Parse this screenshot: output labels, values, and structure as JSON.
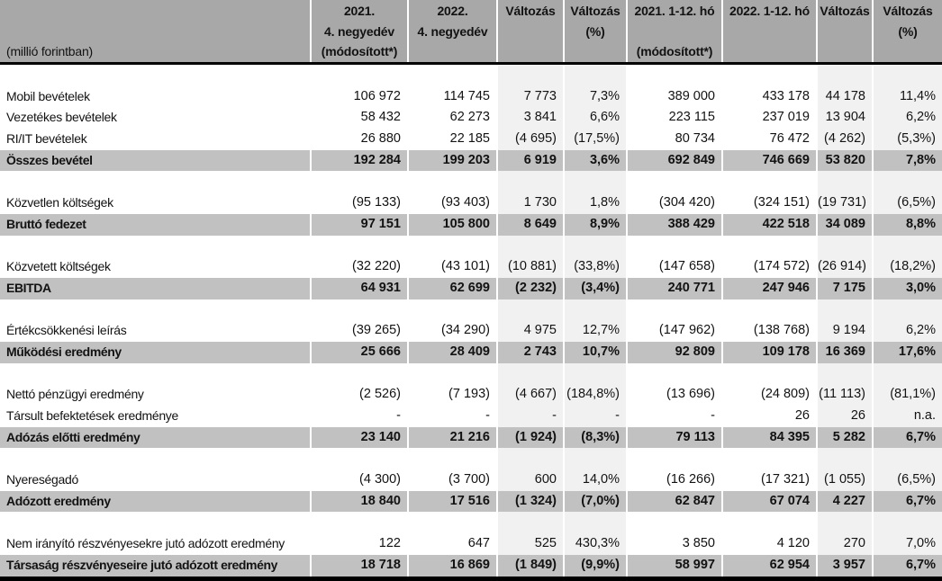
{
  "colors": {
    "header_bg": "#a8a8a8",
    "total_row_bg": "#c1c1c1",
    "change_column_bg": "#f1f1f1",
    "rule": "#000000",
    "text": "#121212"
  },
  "columns": [
    {
      "key": "label",
      "lines": [
        "",
        "",
        "(millió forintban)"
      ]
    },
    {
      "key": "q4-2021",
      "lines": [
        "2021.",
        "4. negyedév",
        "(módosított*)"
      ]
    },
    {
      "key": "q4-2022",
      "lines": [
        "2022.",
        "4. negyedév",
        ""
      ]
    },
    {
      "key": "change-q4",
      "lines": [
        "Változás",
        "",
        ""
      ]
    },
    {
      "key": "change-q4-pct",
      "lines": [
        "Változás",
        "(%)",
        ""
      ]
    },
    {
      "key": "fy-2021",
      "lines": [
        "2021. 1-12. hó",
        "",
        "(módosított*)"
      ]
    },
    {
      "key": "fy-2022",
      "lines": [
        "2022. 1-12. hó",
        "",
        ""
      ]
    },
    {
      "key": "change-fy",
      "lines": [
        "Változás",
        "",
        ""
      ]
    },
    {
      "key": "change-fy-pct",
      "lines": [
        "Változás",
        "(%)",
        ""
      ]
    }
  ],
  "rows": [
    {
      "type": "spacer"
    },
    {
      "type": "data",
      "label": "Mobil bevételek",
      "values": [
        "106 972",
        "114 745",
        "7 773",
        "7,3%",
        "389 000",
        "433 178",
        "44 178",
        "11,4%"
      ]
    },
    {
      "type": "data",
      "label": "Vezetékes bevételek",
      "values": [
        "58 432",
        "62 273",
        "3 841",
        "6,6%",
        "223 115",
        "237 019",
        "13 904",
        "6,2%"
      ]
    },
    {
      "type": "data",
      "label": "RI/IT bevételek",
      "values": [
        "26 880",
        "22 185",
        "(4 695)",
        "(17,5%)",
        "80 734",
        "76 472",
        "(4 262)",
        "(5,3%)"
      ]
    },
    {
      "type": "total",
      "label": "Összes bevétel",
      "values": [
        "192 284",
        "199 203",
        "6 919",
        "3,6%",
        "692 849",
        "746 669",
        "53 820",
        "7,8%"
      ]
    },
    {
      "type": "spacer"
    },
    {
      "type": "data",
      "label": "Közvetlen költségek",
      "values": [
        "(95 133)",
        "(93 403)",
        "1 730",
        "1,8%",
        "(304 420)",
        "(324 151)",
        "(19 731)",
        "(6,5%)"
      ]
    },
    {
      "type": "total",
      "label": "Bruttó fedezet",
      "values": [
        "97 151",
        "105 800",
        "8 649",
        "8,9%",
        "388 429",
        "422 518",
        "34 089",
        "8,8%"
      ]
    },
    {
      "type": "spacer"
    },
    {
      "type": "data",
      "label": "Közvetett költségek",
      "values": [
        "(32 220)",
        "(43 101)",
        "(10 881)",
        "(33,8%)",
        "(147 658)",
        "(174 572)",
        "(26 914)",
        "(18,2%)"
      ]
    },
    {
      "type": "total",
      "label": "EBITDA",
      "values": [
        "64 931",
        "62 699",
        "(2 232)",
        "(3,4%)",
        "240 771",
        "247 946",
        "7 175",
        "3,0%"
      ]
    },
    {
      "type": "spacer"
    },
    {
      "type": "data",
      "label": "Értékcsökkenési leírás",
      "values": [
        "(39 265)",
        "(34 290)",
        "4 975",
        "12,7%",
        "(147 962)",
        "(138 768)",
        "9 194",
        "6,2%"
      ]
    },
    {
      "type": "total",
      "label": "Működési eredmény",
      "values": [
        "25 666",
        "28 409",
        "2 743",
        "10,7%",
        "92 809",
        "109 178",
        "16 369",
        "17,6%"
      ]
    },
    {
      "type": "spacer"
    },
    {
      "type": "data",
      "label": "Nettó pénzügyi eredmény",
      "values": [
        "(2 526)",
        "(7 193)",
        "(4 667)",
        "(184,8%)",
        "(13 696)",
        "(24 809)",
        "(11 113)",
        "(81,1%)"
      ]
    },
    {
      "type": "data",
      "label": "Társult befektetések eredménye",
      "values": [
        "-",
        "-",
        "-",
        "-",
        "-",
        "26",
        "26",
        "n.a."
      ]
    },
    {
      "type": "total",
      "label": "Adózás előtti eredmény",
      "values": [
        "23 140",
        "21 216",
        "(1 924)",
        "(8,3%)",
        "79 113",
        "84 395",
        "5 282",
        "6,7%"
      ]
    },
    {
      "type": "spacer"
    },
    {
      "type": "data",
      "label": "Nyereségadó",
      "values": [
        "(4 300)",
        "(3 700)",
        "600",
        "14,0%",
        "(16 266)",
        "(17 321)",
        "(1 055)",
        "(6,5%)"
      ]
    },
    {
      "type": "total",
      "label": "Adózott eredmény",
      "values": [
        "18 840",
        "17 516",
        "(1 324)",
        "(7,0%)",
        "62 847",
        "67 074",
        "4 227",
        "6,7%"
      ]
    },
    {
      "type": "spacer"
    },
    {
      "type": "data",
      "label": "Nem irányító részvényesekre jutó adózott eredmény",
      "values": [
        "122",
        "647",
        "525",
        "430,3%",
        "3 850",
        "4 120",
        "270",
        "7,0%"
      ]
    },
    {
      "type": "total",
      "label": "Társaság részvényeseire jutó adózott eredmény",
      "values": [
        "18 718",
        "16 869",
        "(1 849)",
        "(9,9%)",
        "58 997",
        "62 954",
        "3 957",
        "6,7%"
      ]
    }
  ]
}
